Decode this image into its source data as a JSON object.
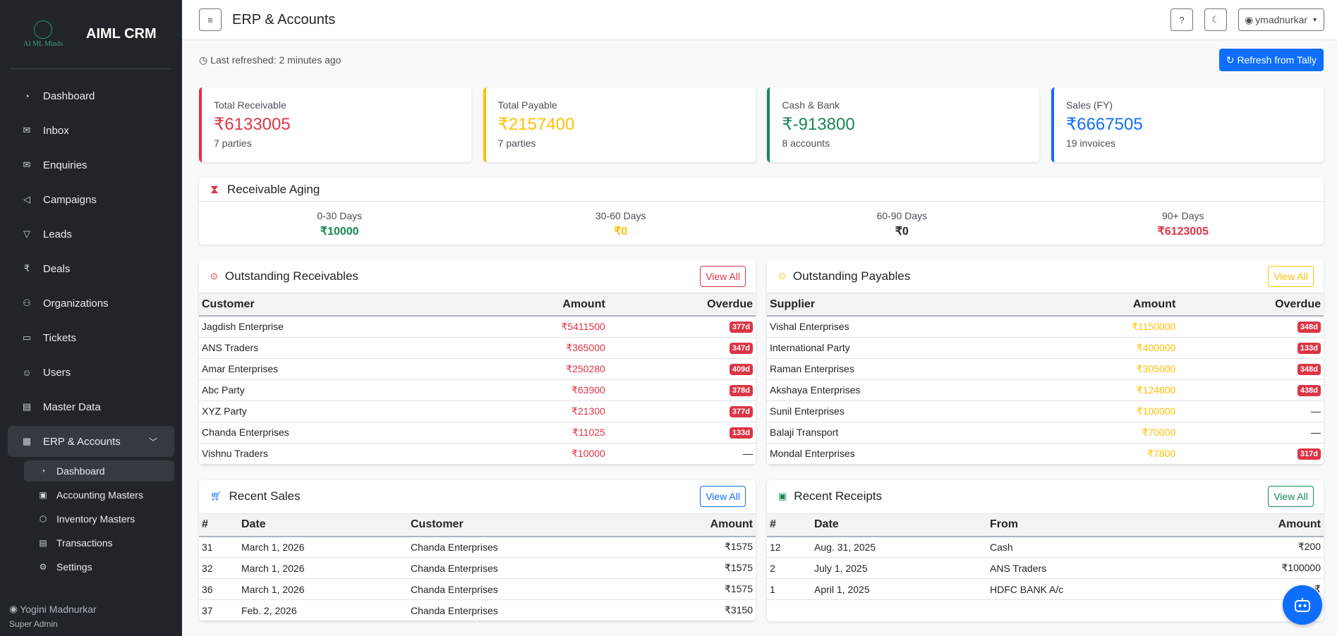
{
  "app": {
    "logo_text": "AI ML Minds",
    "logo_tagline": "",
    "brand_title": "AIML CRM"
  },
  "sidebar": {
    "items": [
      {
        "label": "Dashboard",
        "icon": "speedometer-icon"
      },
      {
        "label": "Inbox",
        "icon": "envelope-icon"
      },
      {
        "label": "Enquiries",
        "icon": "envelope-open-icon"
      },
      {
        "label": "Campaigns",
        "icon": "megaphone-icon"
      },
      {
        "label": "Leads",
        "icon": "funnel-icon"
      },
      {
        "label": "Deals",
        "icon": "rupee-icon"
      },
      {
        "label": "Organizations",
        "icon": "people-icon"
      },
      {
        "label": "Tickets",
        "icon": "ticket-icon"
      },
      {
        "label": "Users",
        "icon": "person-icon"
      },
      {
        "label": "Master Data",
        "icon": "database-icon"
      },
      {
        "label": "ERP & Accounts",
        "icon": "building-icon"
      }
    ],
    "sub_items": [
      {
        "label": "Dashboard",
        "icon": "speedometer-icon"
      },
      {
        "label": "Accounting Masters",
        "icon": "journal-icon"
      },
      {
        "label": "Inventory Masters",
        "icon": "box-icon"
      },
      {
        "label": "Transactions",
        "icon": "list-icon"
      },
      {
        "label": "Settings",
        "icon": "gear-icon"
      }
    ],
    "user_name": "Yogini Madnurkar",
    "user_role": "Super Admin"
  },
  "topbar": {
    "title": "ERP & Accounts",
    "user": "ymadnurkar"
  },
  "refresh": {
    "last_refreshed": "Last refreshed: 2 minutes ago",
    "button": "Refresh from Tally"
  },
  "kpis": [
    {
      "label": "Total Receivable",
      "value": "₹6133005",
      "sub": "7 parties",
      "color": "#dc3545"
    },
    {
      "label": "Total Payable",
      "value": "₹2157400",
      "sub": "7 parties",
      "color": "#ffc107"
    },
    {
      "label": "Cash & Bank",
      "value": "₹-913800",
      "sub": "8 accounts",
      "color": "#198754"
    },
    {
      "label": "Sales (FY)",
      "value": "₹6667505",
      "sub": "19 invoices",
      "color": "#0d6efd"
    }
  ],
  "aging": {
    "title": "Receivable Aging",
    "cols": [
      {
        "label": "0-30 Days",
        "value": "₹10000",
        "color": "#198754"
      },
      {
        "label": "30-60 Days",
        "value": "₹0",
        "color": "#ffc107"
      },
      {
        "label": "60-90 Days",
        "value": "₹0",
        "color": "#212529"
      },
      {
        "label": "90+ Days",
        "value": "₹6123005",
        "color": "#dc3545"
      }
    ]
  },
  "receivables": {
    "title": "Outstanding Receivables",
    "view_all": "View All",
    "headers": [
      "Customer",
      "Amount",
      "Overdue"
    ],
    "rows": [
      {
        "name": "Jagdish Enterprise",
        "amount": "₹5411500",
        "overdue": "377d"
      },
      {
        "name": "ANS Traders",
        "amount": "₹365000",
        "overdue": "347d"
      },
      {
        "name": "Amar Enterprises",
        "amount": "₹250280",
        "overdue": "409d"
      },
      {
        "name": "Abc Party",
        "amount": "₹63900",
        "overdue": "378d"
      },
      {
        "name": "XYZ Party",
        "amount": "₹21300",
        "overdue": "377d"
      },
      {
        "name": "Chanda Enterprises",
        "amount": "₹11025",
        "overdue": "133d"
      },
      {
        "name": "Vishnu Traders",
        "amount": "₹10000",
        "overdue": "—"
      }
    ]
  },
  "payables": {
    "title": "Outstanding Payables",
    "view_all": "View All",
    "headers": [
      "Supplier",
      "Amount",
      "Overdue"
    ],
    "rows": [
      {
        "name": "Vishal Enterprises",
        "amount": "₹1150000",
        "overdue": "348d"
      },
      {
        "name": "International Party",
        "amount": "₹400000",
        "overdue": "133d"
      },
      {
        "name": "Raman Enterprises",
        "amount": "₹305000",
        "overdue": "348d"
      },
      {
        "name": "Akshaya Enterprises",
        "amount": "₹124600",
        "overdue": "438d"
      },
      {
        "name": "Sunil Enterprises",
        "amount": "₹100000",
        "overdue": "—"
      },
      {
        "name": "Balaji Transport",
        "amount": "₹70000",
        "overdue": "—"
      },
      {
        "name": "Mondal Enterprises",
        "amount": "₹7800",
        "overdue": "317d"
      }
    ]
  },
  "sales": {
    "title": "Recent Sales",
    "view_all": "View All",
    "headers": [
      "#",
      "Date",
      "Customer",
      "Amount"
    ],
    "rows": [
      {
        "no": "31",
        "date": "March 1, 2026",
        "party": "Chanda Enterprises",
        "amount": "₹1575"
      },
      {
        "no": "32",
        "date": "March 1, 2026",
        "party": "Chanda Enterprises",
        "amount": "₹1575"
      },
      {
        "no": "36",
        "date": "March 1, 2026",
        "party": "Chanda Enterprises",
        "amount": "₹1575"
      },
      {
        "no": "37",
        "date": "Feb. 2, 2026",
        "party": "Chanda Enterprises",
        "amount": "₹3150"
      }
    ]
  },
  "receipts": {
    "title": "Recent Receipts",
    "view_all": "View All",
    "headers": [
      "#",
      "Date",
      "From",
      "Amount"
    ],
    "rows": [
      {
        "no": "12",
        "date": "Aug. 31, 2025",
        "party": "Cash",
        "amount": "₹200"
      },
      {
        "no": "2",
        "date": "July 1, 2025",
        "party": "ANS Traders",
        "amount": "₹100000"
      },
      {
        "no": "1",
        "date": "April 1, 2025",
        "party": "HDFC BANK A/c",
        "amount": "₹"
      }
    ]
  }
}
